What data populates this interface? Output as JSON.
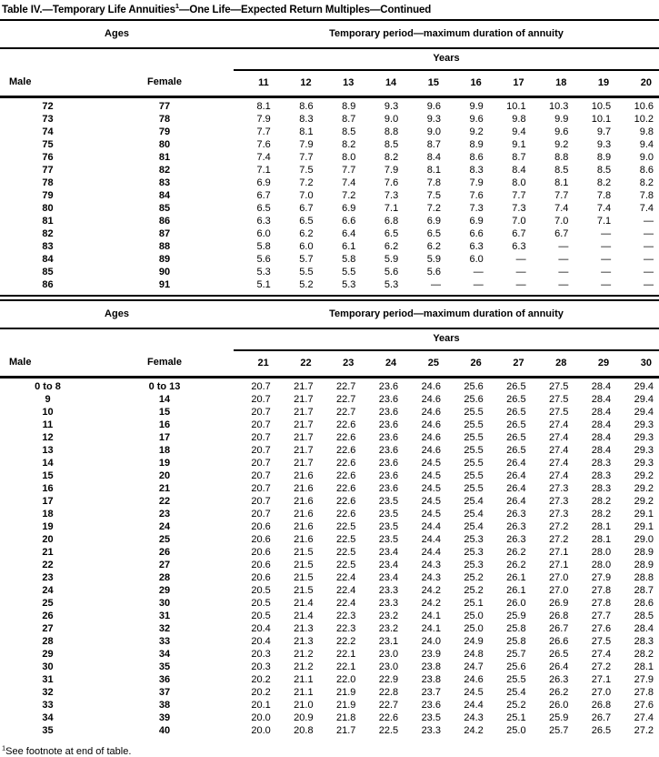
{
  "page": {
    "title": {
      "prefix": "Table IV.—Temporary Life Annuities",
      "sup": "1",
      "suffix": "—One Life—Expected Return Multiples—Continued"
    },
    "footnote": {
      "sup": "1",
      "text": "See footnote at end of table."
    }
  },
  "tables": [
    {
      "ages_header": "Ages",
      "period_header": "Temporary period—maximum duration of annuity",
      "years_header": "Years",
      "male_header": "Male",
      "female_header": "Female",
      "year_columns": [
        "11",
        "12",
        "13",
        "14",
        "15",
        "16",
        "17",
        "18",
        "19",
        "20"
      ],
      "rows": [
        {
          "male": "72",
          "female": "77",
          "values": [
            "8.1",
            "8.6",
            "8.9",
            "9.3",
            "9.6",
            "9.9",
            "10.1",
            "10.3",
            "10.5",
            "10.6"
          ]
        },
        {
          "male": "73",
          "female": "78",
          "values": [
            "7.9",
            "8.3",
            "8.7",
            "9.0",
            "9.3",
            "9.6",
            "9.8",
            "9.9",
            "10.1",
            "10.2"
          ]
        },
        {
          "male": "74",
          "female": "79",
          "values": [
            "7.7",
            "8.1",
            "8.5",
            "8.8",
            "9.0",
            "9.2",
            "9.4",
            "9.6",
            "9.7",
            "9.8"
          ]
        },
        {
          "male": "75",
          "female": "80",
          "values": [
            "7.6",
            "7.9",
            "8.2",
            "8.5",
            "8.7",
            "8.9",
            "9.1",
            "9.2",
            "9.3",
            "9.4"
          ]
        },
        {
          "male": "76",
          "female": "81",
          "values": [
            "7.4",
            "7.7",
            "8.0",
            "8.2",
            "8.4",
            "8.6",
            "8.7",
            "8.8",
            "8.9",
            "9.0"
          ]
        },
        {
          "male": "77",
          "female": "82",
          "values": [
            "7.1",
            "7.5",
            "7.7",
            "7.9",
            "8.1",
            "8.3",
            "8.4",
            "8.5",
            "8.5",
            "8.6"
          ]
        },
        {
          "male": "78",
          "female": "83",
          "values": [
            "6.9",
            "7.2",
            "7.4",
            "7.6",
            "7.8",
            "7.9",
            "8.0",
            "8.1",
            "8.2",
            "8.2"
          ]
        },
        {
          "male": "79",
          "female": "84",
          "values": [
            "6.7",
            "7.0",
            "7.2",
            "7.3",
            "7.5",
            "7.6",
            "7.7",
            "7.7",
            "7.8",
            "7.8"
          ]
        },
        {
          "male": "80",
          "female": "85",
          "values": [
            "6.5",
            "6.7",
            "6.9",
            "7.1",
            "7.2",
            "7.3",
            "7.3",
            "7.4",
            "7.4",
            "7.4"
          ]
        },
        {
          "male": "81",
          "female": "86",
          "values": [
            "6.3",
            "6.5",
            "6.6",
            "6.8",
            "6.9",
            "6.9",
            "7.0",
            "7.0",
            "7.1",
            "—"
          ]
        },
        {
          "male": "82",
          "female": "87",
          "values": [
            "6.0",
            "6.2",
            "6.4",
            "6.5",
            "6.5",
            "6.6",
            "6.7",
            "6.7",
            "—",
            "—"
          ]
        },
        {
          "male": "83",
          "female": "88",
          "values": [
            "5.8",
            "6.0",
            "6.1",
            "6.2",
            "6.2",
            "6.3",
            "6.3",
            "—",
            "—",
            "—"
          ]
        },
        {
          "male": "84",
          "female": "89",
          "values": [
            "5.6",
            "5.7",
            "5.8",
            "5.9",
            "5.9",
            "6.0",
            "—",
            "—",
            "—",
            "—"
          ]
        },
        {
          "male": "85",
          "female": "90",
          "values": [
            "5.3",
            "5.5",
            "5.5",
            "5.6",
            "5.6",
            "—",
            "—",
            "—",
            "—",
            "—"
          ]
        },
        {
          "male": "86",
          "female": "91",
          "values": [
            "5.1",
            "5.2",
            "5.3",
            "5.3",
            "—",
            "—",
            "—",
            "—",
            "—",
            "—"
          ]
        }
      ]
    },
    {
      "ages_header": "Ages",
      "period_header": "Temporary period—maximum duration of annuity",
      "years_header": "Years",
      "male_header": "Male",
      "female_header": "Female",
      "year_columns": [
        "21",
        "22",
        "23",
        "24",
        "25",
        "26",
        "27",
        "28",
        "29",
        "30"
      ],
      "rows": [
        {
          "male": "0 to 8",
          "female": "0 to 13",
          "values": [
            "20.7",
            "21.7",
            "22.7",
            "23.6",
            "24.6",
            "25.6",
            "26.5",
            "27.5",
            "28.4",
            "29.4"
          ]
        },
        {
          "male": "9",
          "female": "14",
          "values": [
            "20.7",
            "21.7",
            "22.7",
            "23.6",
            "24.6",
            "25.6",
            "26.5",
            "27.5",
            "28.4",
            "29.4"
          ]
        },
        {
          "male": "10",
          "female": "15",
          "values": [
            "20.7",
            "21.7",
            "22.7",
            "23.6",
            "24.6",
            "25.5",
            "26.5",
            "27.5",
            "28.4",
            "29.4"
          ]
        },
        {
          "male": "11",
          "female": "16",
          "values": [
            "20.7",
            "21.7",
            "22.6",
            "23.6",
            "24.6",
            "25.5",
            "26.5",
            "27.4",
            "28.4",
            "29.3"
          ]
        },
        {
          "male": "12",
          "female": "17",
          "values": [
            "20.7",
            "21.7",
            "22.6",
            "23.6",
            "24.6",
            "25.5",
            "26.5",
            "27.4",
            "28.4",
            "29.3"
          ]
        },
        {
          "male": "13",
          "female": "18",
          "values": [
            "20.7",
            "21.7",
            "22.6",
            "23.6",
            "24.6",
            "25.5",
            "26.5",
            "27.4",
            "28.4",
            "29.3"
          ]
        },
        {
          "male": "14",
          "female": "19",
          "values": [
            "20.7",
            "21.7",
            "22.6",
            "23.6",
            "24.5",
            "25.5",
            "26.4",
            "27.4",
            "28.3",
            "29.3"
          ]
        },
        {
          "male": "15",
          "female": "20",
          "values": [
            "20.7",
            "21.6",
            "22.6",
            "23.6",
            "24.5",
            "25.5",
            "26.4",
            "27.4",
            "28.3",
            "29.2"
          ]
        },
        {
          "male": "16",
          "female": "21",
          "values": [
            "20.7",
            "21.6",
            "22.6",
            "23.6",
            "24.5",
            "25.5",
            "26.4",
            "27.3",
            "28.3",
            "29.2"
          ]
        },
        {
          "male": "17",
          "female": "22",
          "values": [
            "20.7",
            "21.6",
            "22.6",
            "23.5",
            "24.5",
            "25.4",
            "26.4",
            "27.3",
            "28.2",
            "29.2"
          ]
        },
        {
          "male": "18",
          "female": "23",
          "values": [
            "20.7",
            "21.6",
            "22.6",
            "23.5",
            "24.5",
            "25.4",
            "26.3",
            "27.3",
            "28.2",
            "29.1"
          ]
        },
        {
          "male": "19",
          "female": "24",
          "values": [
            "20.6",
            "21.6",
            "22.5",
            "23.5",
            "24.4",
            "25.4",
            "26.3",
            "27.2",
            "28.1",
            "29.1"
          ]
        },
        {
          "male": "20",
          "female": "25",
          "values": [
            "20.6",
            "21.6",
            "22.5",
            "23.5",
            "24.4",
            "25.3",
            "26.3",
            "27.2",
            "28.1",
            "29.0"
          ]
        },
        {
          "male": "21",
          "female": "26",
          "values": [
            "20.6",
            "21.5",
            "22.5",
            "23.4",
            "24.4",
            "25.3",
            "26.2",
            "27.1",
            "28.0",
            "28.9"
          ]
        },
        {
          "male": "22",
          "female": "27",
          "values": [
            "20.6",
            "21.5",
            "22.5",
            "23.4",
            "24.3",
            "25.3",
            "26.2",
            "27.1",
            "28.0",
            "28.9"
          ]
        },
        {
          "male": "23",
          "female": "28",
          "values": [
            "20.6",
            "21.5",
            "22.4",
            "23.4",
            "24.3",
            "25.2",
            "26.1",
            "27.0",
            "27.9",
            "28.8"
          ]
        },
        {
          "male": "24",
          "female": "29",
          "values": [
            "20.5",
            "21.5",
            "22.4",
            "23.3",
            "24.2",
            "25.2",
            "26.1",
            "27.0",
            "27.8",
            "28.7"
          ]
        },
        {
          "male": "25",
          "female": "30",
          "values": [
            "20.5",
            "21.4",
            "22.4",
            "23.3",
            "24.2",
            "25.1",
            "26.0",
            "26.9",
            "27.8",
            "28.6"
          ]
        },
        {
          "male": "26",
          "female": "31",
          "values": [
            "20.5",
            "21.4",
            "22.3",
            "23.2",
            "24.1",
            "25.0",
            "25.9",
            "26.8",
            "27.7",
            "28.5"
          ]
        },
        {
          "male": "27",
          "female": "32",
          "values": [
            "20.4",
            "21.3",
            "22.3",
            "23.2",
            "24.1",
            "25.0",
            "25.8",
            "26.7",
            "27.6",
            "28.4"
          ]
        },
        {
          "male": "28",
          "female": "33",
          "values": [
            "20.4",
            "21.3",
            "22.2",
            "23.1",
            "24.0",
            "24.9",
            "25.8",
            "26.6",
            "27.5",
            "28.3"
          ]
        },
        {
          "male": "29",
          "female": "34",
          "values": [
            "20.3",
            "21.2",
            "22.1",
            "23.0",
            "23.9",
            "24.8",
            "25.7",
            "26.5",
            "27.4",
            "28.2"
          ]
        },
        {
          "male": "30",
          "female": "35",
          "values": [
            "20.3",
            "21.2",
            "22.1",
            "23.0",
            "23.8",
            "24.7",
            "25.6",
            "26.4",
            "27.2",
            "28.1"
          ]
        },
        {
          "male": "31",
          "female": "36",
          "values": [
            "20.2",
            "21.1",
            "22.0",
            "22.9",
            "23.8",
            "24.6",
            "25.5",
            "26.3",
            "27.1",
            "27.9"
          ]
        },
        {
          "male": "32",
          "female": "37",
          "values": [
            "20.2",
            "21.1",
            "21.9",
            "22.8",
            "23.7",
            "24.5",
            "25.4",
            "26.2",
            "27.0",
            "27.8"
          ]
        },
        {
          "male": "33",
          "female": "38",
          "values": [
            "20.1",
            "21.0",
            "21.9",
            "22.7",
            "23.6",
            "24.4",
            "25.2",
            "26.0",
            "26.8",
            "27.6"
          ]
        },
        {
          "male": "34",
          "female": "39",
          "values": [
            "20.0",
            "20.9",
            "21.8",
            "22.6",
            "23.5",
            "24.3",
            "25.1",
            "25.9",
            "26.7",
            "27.4"
          ]
        },
        {
          "male": "35",
          "female": "40",
          "values": [
            "20.0",
            "20.8",
            "21.7",
            "22.5",
            "23.3",
            "24.2",
            "25.0",
            "25.7",
            "26.5",
            "27.2"
          ]
        }
      ]
    }
  ]
}
